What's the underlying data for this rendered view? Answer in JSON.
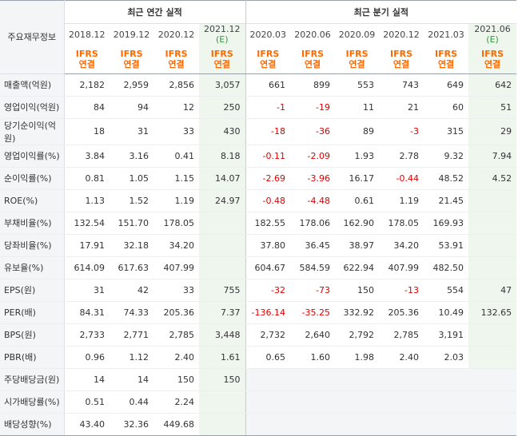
{
  "corner_label": "주요재무정보",
  "groups": {
    "annual": "최근 연간 실적",
    "quarterly": "최근 분기 실적"
  },
  "periods": [
    "2018.12",
    "2019.12",
    "2020.12",
    "2021.12",
    "2020.03",
    "2020.06",
    "2020.09",
    "2020.12",
    "2021.03",
    "2021.06"
  ],
  "estimate_mark": "(E)",
  "basis": {
    "line1": "IFRS",
    "line2": "연결"
  },
  "rows": [
    {
      "label": "매출액(억원)",
      "values": [
        "2,182",
        "2,959",
        "2,856",
        "3,057",
        "661",
        "899",
        "553",
        "743",
        "649",
        "642"
      ]
    },
    {
      "label": "영업이익(억원)",
      "values": [
        "84",
        "94",
        "12",
        "250",
        "-1",
        "-19",
        "11",
        "21",
        "60",
        "51"
      ]
    },
    {
      "label": "당기순이익(억원)",
      "values": [
        "18",
        "31",
        "33",
        "430",
        "-18",
        "-36",
        "89",
        "-3",
        "315",
        "29"
      ]
    },
    {
      "label": "영업이익률(%)",
      "values": [
        "3.84",
        "3.16",
        "0.41",
        "8.18",
        "-0.11",
        "-2.09",
        "1.93",
        "2.78",
        "9.32",
        "7.94"
      ]
    },
    {
      "label": "순이익률(%)",
      "values": [
        "0.81",
        "1.05",
        "1.15",
        "14.07",
        "-2.69",
        "-3.96",
        "16.17",
        "-0.44",
        "48.52",
        "4.52"
      ]
    },
    {
      "label": "ROE(%)",
      "values": [
        "1.13",
        "1.52",
        "1.19",
        "24.97",
        "-0.48",
        "-4.48",
        "0.61",
        "1.19",
        "21.45",
        ""
      ]
    },
    {
      "label": "부채비율(%)",
      "values": [
        "132.54",
        "151.70",
        "178.05",
        "",
        "182.55",
        "178.06",
        "162.90",
        "178.05",
        "169.93",
        ""
      ]
    },
    {
      "label": "당좌비율(%)",
      "values": [
        "17.91",
        "32.18",
        "34.20",
        "",
        "37.80",
        "36.45",
        "38.97",
        "34.20",
        "53.91",
        ""
      ]
    },
    {
      "label": "유보율(%)",
      "values": [
        "614.09",
        "617.63",
        "407.99",
        "",
        "604.67",
        "584.59",
        "622.94",
        "407.99",
        "482.50",
        ""
      ]
    },
    {
      "label": "EPS(원)",
      "values": [
        "31",
        "42",
        "33",
        "755",
        "-32",
        "-73",
        "150",
        "-13",
        "554",
        "47"
      ]
    },
    {
      "label": "PER(배)",
      "values": [
        "84.31",
        "74.33",
        "205.36",
        "7.37",
        "-136.14",
        "-35.25",
        "332.92",
        "205.36",
        "10.49",
        "132.65"
      ]
    },
    {
      "label": "BPS(원)",
      "values": [
        "2,733",
        "2,771",
        "2,785",
        "3,448",
        "2,732",
        "2,640",
        "2,792",
        "2,785",
        "3,191",
        ""
      ]
    },
    {
      "label": "PBR(배)",
      "values": [
        "0.96",
        "1.12",
        "2.40",
        "1.61",
        "0.65",
        "1.60",
        "1.98",
        "2.40",
        "2.03",
        ""
      ]
    },
    {
      "label": "주당배당금(원)",
      "values": [
        "14",
        "14",
        "150",
        "150",
        "",
        "",
        "",
        "",
        "",
        ""
      ]
    },
    {
      "label": "시가배당률(%)",
      "values": [
        "0.51",
        "0.44",
        "2.24",
        "",
        "",
        "",
        "",
        "",
        "",
        ""
      ]
    },
    {
      "label": "배당성향(%)",
      "values": [
        "43.40",
        "32.36",
        "449.68",
        "",
        "",
        "",
        "",
        "",
        "",
        ""
      ]
    }
  ]
}
